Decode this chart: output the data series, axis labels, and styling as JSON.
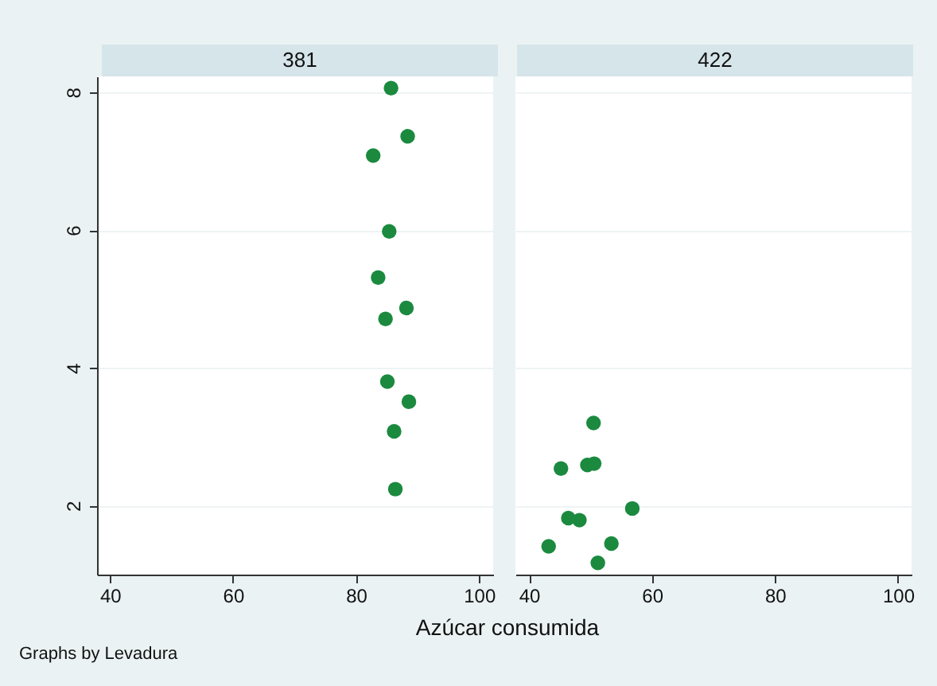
{
  "chart_data": [
    {
      "type": "scatter",
      "title": "381",
      "xlabel": "Azúcar consumida",
      "annotations": [
        "Graphs by Levadura"
      ],
      "x": [
        85.7,
        88.4,
        82.8,
        85.4,
        83.6,
        88.2,
        84.8,
        85.1,
        88.6,
        86.2,
        86.4
      ],
      "series": [
        {
          "color": "#1b8a3f",
          "values": [
            8.06,
            7.36,
            7.08,
            5.98,
            5.31,
            4.87,
            4.71,
            3.8,
            3.51,
            3.08,
            2.24
          ]
        }
      ],
      "xlim": [
        37.9,
        102.3
      ],
      "xticks": [
        40,
        60,
        80,
        100
      ],
      "ylim": [
        1,
        8.23
      ],
      "yticks": [
        2,
        4,
        6,
        8
      ],
      "grid": "y",
      "marker": "circle"
    },
    {
      "type": "scatter",
      "title": "422",
      "x": [
        50.5,
        45.2,
        49.5,
        50.6,
        56.8,
        46.4,
        48.2,
        43.2,
        53.4,
        51.2
      ],
      "series": [
        {
          "color": "#1b8a3f",
          "values": [
            3.2,
            2.54,
            2.59,
            2.61,
            1.96,
            1.82,
            1.79,
            1.41,
            1.45,
            1.17
          ]
        }
      ],
      "xlim": [
        37.8,
        102.2
      ],
      "xticks": [
        40,
        60,
        80,
        100
      ],
      "ylim": [
        1,
        8.23
      ],
      "yticks": [
        2,
        4,
        6,
        8
      ],
      "grid": "y",
      "marker": "circle",
      "tick_labels": "x"
    }
  ]
}
